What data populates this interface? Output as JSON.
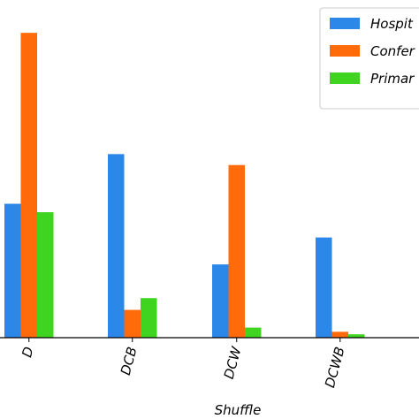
{
  "chart_data": {
    "type": "bar",
    "categories": [
      "D",
      "DCB",
      "DCW",
      "DCWB"
    ],
    "series": [
      {
        "name": "Hospit",
        "color": "#2b87e8",
        "values": [
          159,
          218,
          87,
          119
        ]
      },
      {
        "name": "Confer",
        "color": "#ff6a0a",
        "values": [
          362,
          33,
          205,
          7
        ]
      },
      {
        "name": "Primar",
        "color": "#3fd41f",
        "values": [
          149,
          47,
          12,
          4
        ]
      }
    ],
    "title": "",
    "xlabel": "Shuffle",
    "ylabel": "",
    "ylim": [
      0,
      380
    ],
    "grid": false,
    "legend_position": "top-right"
  }
}
